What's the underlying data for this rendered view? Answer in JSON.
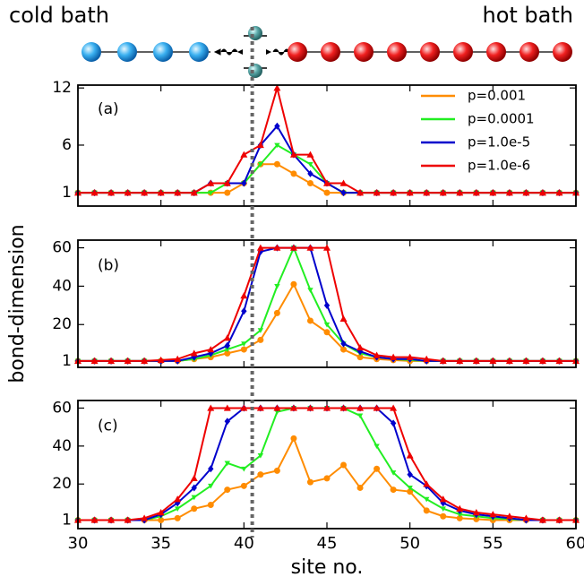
{
  "illustration": {
    "left_label": "cold bath",
    "right_label": "hot bath"
  },
  "chart_data": [
    {
      "type": "line",
      "panel_label": "(a)",
      "legend": "upper right",
      "vline": 40.5,
      "x": [
        30,
        31,
        32,
        33,
        34,
        35,
        36,
        37,
        38,
        39,
        40,
        41,
        42,
        43,
        44,
        45,
        46,
        47,
        48,
        49,
        50,
        51,
        52,
        53,
        54,
        55,
        56,
        57,
        58,
        59,
        60
      ],
      "xlim": [
        30,
        60
      ],
      "ylim": [
        -0.4,
        12.3
      ],
      "yticks": [
        1,
        6,
        12
      ],
      "series": [
        {
          "name": "p=0.001",
          "color": "#ff8c00",
          "values": [
            1,
            1,
            1,
            1,
            1,
            1,
            1,
            1,
            1,
            1,
            2,
            4,
            4,
            3,
            2,
            1,
            1,
            1,
            1,
            1,
            1,
            1,
            1,
            1,
            1,
            1,
            1,
            1,
            1,
            1,
            1
          ]
        },
        {
          "name": "p=0.0001",
          "color": "#22ee22",
          "values": [
            1,
            1,
            1,
            1,
            1,
            1,
            1,
            1,
            1,
            2,
            2,
            4,
            6,
            5,
            4,
            2,
            1,
            1,
            1,
            1,
            1,
            1,
            1,
            1,
            1,
            1,
            1,
            1,
            1,
            1,
            1
          ]
        },
        {
          "name": "p=1.0e-5",
          "color": "#0000cc",
          "values": [
            1,
            1,
            1,
            1,
            1,
            1,
            1,
            1,
            2,
            2,
            2,
            6,
            8,
            5,
            3,
            2,
            1,
            1,
            1,
            1,
            1,
            1,
            1,
            1,
            1,
            1,
            1,
            1,
            1,
            1,
            1
          ]
        },
        {
          "name": "p=1.0e-6",
          "color": "#ee0000",
          "values": [
            1,
            1,
            1,
            1,
            1,
            1,
            1,
            1,
            2,
            2,
            5,
            6,
            12,
            5,
            5,
            2,
            2,
            1,
            1,
            1,
            1,
            1,
            1,
            1,
            1,
            1,
            1,
            1,
            1,
            1,
            1
          ]
        }
      ]
    },
    {
      "type": "line",
      "panel_label": "(b)",
      "ylabel": "bond-dimension",
      "x": [
        30,
        31,
        32,
        33,
        34,
        35,
        36,
        37,
        38,
        39,
        40,
        41,
        42,
        43,
        44,
        45,
        46,
        47,
        48,
        49,
        50,
        51,
        52,
        53,
        54,
        55,
        56,
        57,
        58,
        59,
        60
      ],
      "xlim": [
        30,
        60
      ],
      "ylim": [
        -2.3,
        64
      ],
      "yticks": [
        1,
        20,
        40,
        60
      ],
      "series": [
        {
          "name": "p=0.001",
          "color": "#ff8c00",
          "values": [
            1,
            1,
            1,
            1,
            1,
            1,
            1,
            2,
            3,
            5,
            7,
            12,
            26,
            41,
            22,
            16,
            7,
            3,
            2,
            1.5,
            1,
            1,
            1,
            1,
            1,
            1,
            1,
            1,
            1,
            1,
            1
          ]
        },
        {
          "name": "p=0.0001",
          "color": "#22ee22",
          "values": [
            1,
            1,
            1,
            1,
            1,
            1,
            1,
            2,
            4,
            7,
            10,
            17,
            40,
            60,
            38,
            20,
            10,
            5,
            3,
            2,
            1.5,
            1,
            1,
            1,
            1,
            1,
            1,
            1,
            1,
            1,
            1
          ]
        },
        {
          "name": "p=1.0e-5",
          "color": "#0000cc",
          "values": [
            1,
            1,
            1,
            1,
            1,
            1,
            1,
            3,
            5,
            9,
            27,
            58,
            60,
            60,
            60,
            30,
            10,
            6,
            3,
            2,
            2,
            1,
            1,
            1,
            1,
            1,
            1,
            1,
            1,
            1,
            1
          ]
        },
        {
          "name": "p=1.0e-6",
          "color": "#ee0000",
          "values": [
            1,
            1,
            1,
            1,
            1,
            1.5,
            2,
            5,
            7,
            13,
            35,
            60,
            60,
            60,
            60,
            60,
            23,
            8,
            4,
            3,
            3,
            2,
            1,
            1,
            1,
            1,
            1,
            1,
            1,
            1,
            1
          ]
        }
      ]
    },
    {
      "type": "line",
      "panel_label": "(c)",
      "xlabel": "site no.",
      "x": [
        30,
        31,
        32,
        33,
        34,
        35,
        36,
        37,
        38,
        39,
        40,
        41,
        42,
        43,
        44,
        45,
        46,
        47,
        48,
        49,
        50,
        51,
        52,
        53,
        54,
        55,
        56,
        57,
        58,
        59,
        60
      ],
      "xlim": [
        30,
        60
      ],
      "xticks": [
        30,
        35,
        40,
        45,
        50,
        55,
        60
      ],
      "ylim": [
        -3.5,
        64
      ],
      "yticks": [
        1,
        20,
        40,
        60
      ],
      "series": [
        {
          "name": "p=0.001",
          "color": "#ff8c00",
          "values": [
            1,
            1,
            1,
            1,
            1,
            1,
            2,
            7,
            9,
            17,
            19,
            25,
            27,
            44,
            21,
            23,
            30,
            18,
            28,
            17,
            16,
            6,
            3,
            2,
            1.5,
            1,
            1,
            1,
            1,
            1,
            1
          ]
        },
        {
          "name": "p=0.0001",
          "color": "#22ee22",
          "values": [
            1,
            1,
            1,
            1,
            1,
            3,
            7,
            13,
            19,
            31,
            28,
            35,
            58,
            60,
            60,
            60,
            60,
            56,
            40,
            26,
            18,
            12,
            7,
            4,
            3,
            2,
            1.5,
            1,
            1,
            1,
            1
          ]
        },
        {
          "name": "p=1.0e-5",
          "color": "#0000cc",
          "values": [
            1,
            1,
            1,
            1,
            1,
            4,
            10,
            18,
            28,
            53,
            60,
            60,
            60,
            60,
            60,
            60,
            60,
            60,
            60,
            52,
            25,
            19,
            10,
            6,
            4,
            3,
            2,
            1,
            1,
            1,
            1
          ]
        },
        {
          "name": "p=1.0e-6",
          "color": "#ee0000",
          "values": [
            1,
            1,
            1,
            1,
            2,
            5,
            12,
            23,
            60,
            60,
            60,
            60,
            60,
            60,
            60,
            60,
            60,
            60,
            60,
            60,
            35,
            20,
            12,
            7,
            5,
            4,
            3,
            2,
            1,
            1,
            1
          ]
        }
      ]
    }
  ]
}
